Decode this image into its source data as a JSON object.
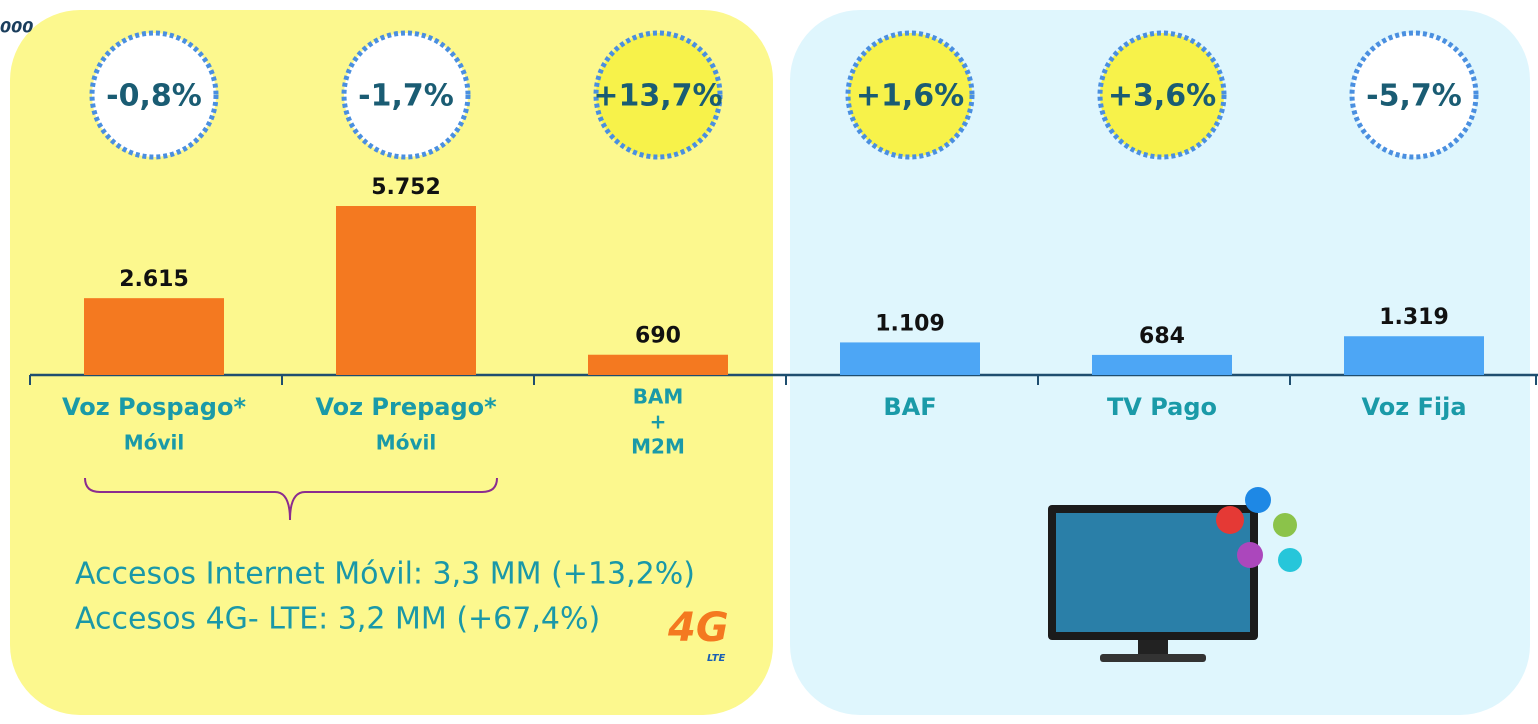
{
  "chart_data": {
    "type": "bar",
    "unit_label": "000",
    "categories": [
      [
        "Voz Pospago*",
        "Móvil"
      ],
      [
        "Voz Prepago*",
        "Móvil"
      ],
      [
        "BAM",
        "+",
        "M2M"
      ],
      [
        "BAF"
      ],
      [
        "TV Pago"
      ],
      [
        "Voz Fija"
      ]
    ],
    "values": [
      2615,
      5752,
      690,
      1109,
      684,
      1319
    ],
    "value_labels": [
      "2.615",
      "5.752",
      "690",
      "1.109",
      "684",
      "1.319"
    ],
    "colors": [
      "#f47920",
      "#f47920",
      "#f47920",
      "#4da6f5",
      "#4da6f5",
      "#4da6f5"
    ],
    "growth": [
      "-0,8%",
      "-1,7%",
      "+13,7%",
      "+1,6%",
      "+3,6%",
      "-5,7%"
    ],
    "growth_fill": [
      "#ffffff",
      "#ffffff",
      "#f7f24a",
      "#f7f24a",
      "#f7f24a",
      "#ffffff"
    ],
    "annotations": [
      "Accesos Internet Móvil: 3,3 MM (+13,2%)",
      "Accesos 4G- LTE: 3,2 MM (+67,4%)"
    ],
    "logo": {
      "main": "4G",
      "sub": "LTE"
    }
  }
}
